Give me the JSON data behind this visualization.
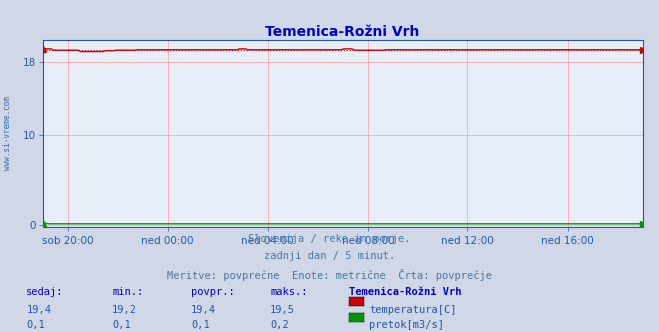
{
  "title": "Temenica-Rožni Vrh",
  "title_color": "#0000cc",
  "bg_color": "#d0d8e8",
  "plot_bg_color": "#e8eef8",
  "grid_color": "#ff9999",
  "x_tick_labels": [
    "sob 20:00",
    "ned 00:00",
    "ned 04:00",
    "ned 08:00",
    "ned 12:00",
    "ned 16:00"
  ],
  "x_tick_positions_frac": [
    0.042,
    0.208,
    0.375,
    0.542,
    0.708,
    0.875
  ],
  "y_ticks": [
    0,
    10,
    18
  ],
  "ylim": [
    -0.3,
    20.5
  ],
  "temp_value": 19.4,
  "temp_color": "#cc0000",
  "flow_color": "#009900",
  "watermark": "www.si-vreme.com",
  "footer_line1": "Slovenija / reke in morje.",
  "footer_line2": "zadnji dan / 5 minut.",
  "footer_line3": "Meritve: povprečne  Enote: metrične  Črta: povprečje",
  "footer_color": "#4477aa",
  "table_header_cols": [
    "sedaj:",
    "min.:",
    "povpr.:",
    "maks.:"
  ],
  "table_station": "Temenica-Rožni Vrh",
  "table_row1": [
    "19,4",
    "19,2",
    "19,4",
    "19,5"
  ],
  "table_row2": [
    "0,1",
    "0,1",
    "0,1",
    "0,2"
  ],
  "label_temp": "temperatura[C]",
  "label_flow": "pretok[m3/s]",
  "n_points": 288
}
